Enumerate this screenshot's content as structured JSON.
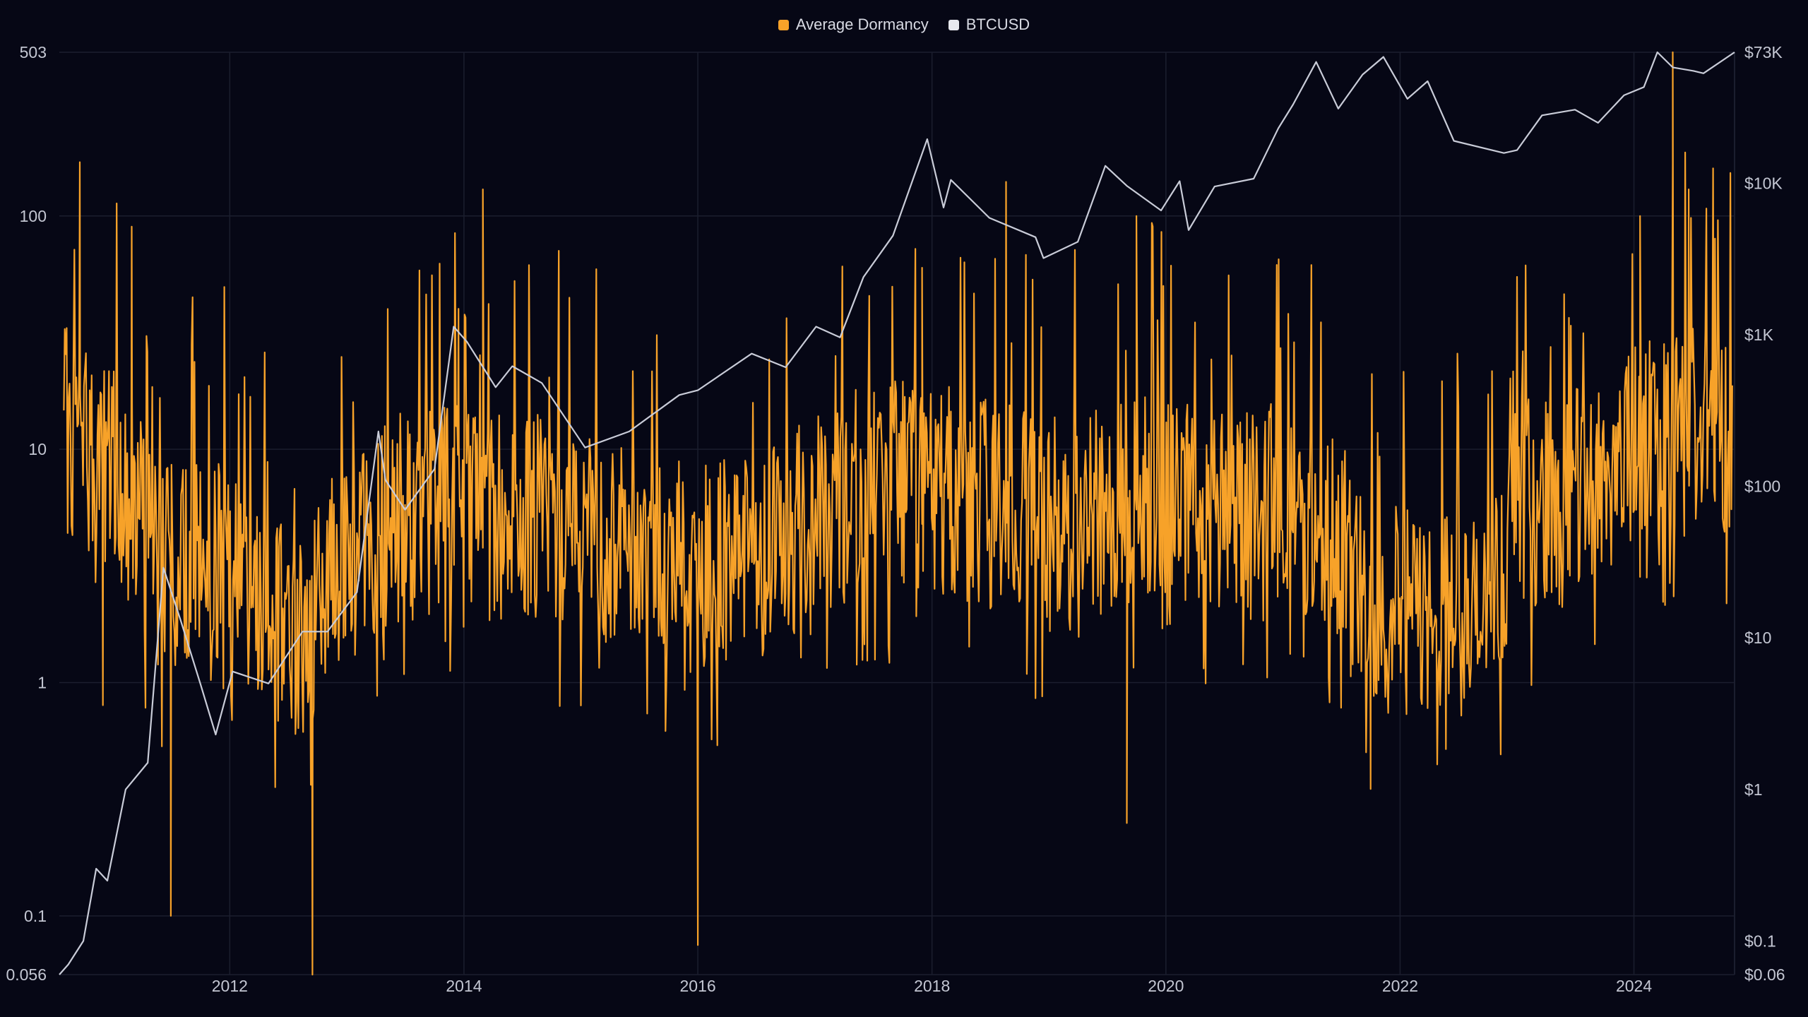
{
  "colors": {
    "background": "#060715",
    "grid": "#1b1e2e",
    "dormancy": "#f7a229",
    "btc": "#c9ccd8"
  },
  "legend": [
    {
      "label": "Average Dormancy",
      "color": "#f7a229"
    },
    {
      "label": "BTCUSD",
      "color": "#e8e9ef"
    }
  ],
  "chart_data": {
    "type": "line",
    "title": "",
    "x_range": [
      "2010-07-18",
      "2024-11-10"
    ],
    "x_ticks": [
      "2012",
      "2014",
      "2016",
      "2018",
      "2020",
      "2022",
      "2024"
    ],
    "y_left": {
      "scale": "log",
      "range": [
        0.056,
        503
      ],
      "ticks": [
        {
          "value": 503,
          "label": "503"
        },
        {
          "value": 100,
          "label": "100"
        },
        {
          "value": 10,
          "label": "10"
        },
        {
          "value": 1,
          "label": "1"
        },
        {
          "value": 0.1,
          "label": "0.1"
        },
        {
          "value": 0.056,
          "label": "0.056"
        }
      ]
    },
    "y_right": {
      "scale": "log",
      "range": [
        0.06,
        73000
      ],
      "ticks": [
        {
          "value": 73000,
          "label": "$73K"
        },
        {
          "value": 10000,
          "label": "$10K"
        },
        {
          "value": 1000,
          "label": "$1K"
        },
        {
          "value": 100,
          "label": "$100"
        },
        {
          "value": 10,
          "label": "$10"
        },
        {
          "value": 1,
          "label": "$1"
        },
        {
          "value": 0.1,
          "label": "$0.1"
        },
        {
          "value": 0.06,
          "label": "$0.06"
        }
      ]
    },
    "grid": true,
    "legend_position": "top-center",
    "series": [
      {
        "name": "Average Dormancy",
        "axis": "left",
        "style": "spiky-daily",
        "baseline": [
          [
            "2010-08-01",
            12
          ],
          [
            "2011-01-01",
            9
          ],
          [
            "2011-06-01",
            3
          ],
          [
            "2012-01-01",
            3.5
          ],
          [
            "2012-08-01",
            1.5
          ],
          [
            "2013-01-01",
            3.5
          ],
          [
            "2013-06-01",
            5
          ],
          [
            "2014-01-01",
            6
          ],
          [
            "2014-06-01",
            5
          ],
          [
            "2015-01-01",
            5
          ],
          [
            "2015-06-01",
            4
          ],
          [
            "2016-01-01",
            3
          ],
          [
            "2016-06-01",
            3.5
          ],
          [
            "2017-01-01",
            5
          ],
          [
            "2017-06-01",
            7
          ],
          [
            "2018-01-01",
            7
          ],
          [
            "2018-06-01",
            6
          ],
          [
            "2019-01-01",
            5
          ],
          [
            "2019-06-01",
            6
          ],
          [
            "2020-01-01",
            6
          ],
          [
            "2020-06-01",
            5.5
          ],
          [
            "2021-01-01",
            6
          ],
          [
            "2021-06-01",
            5
          ],
          [
            "2021-09-01",
            2.5
          ],
          [
            "2022-01-01",
            2
          ],
          [
            "2022-06-01",
            2
          ],
          [
            "2022-10-01",
            1.8
          ],
          [
            "2023-01-01",
            6
          ],
          [
            "2023-06-01",
            6
          ],
          [
            "2024-01-01",
            10
          ],
          [
            "2024-06-01",
            13
          ],
          [
            "2024-11-01",
            12
          ]
        ],
        "peaks": [
          [
            "2010-09-20",
            170
          ],
          [
            "2011-03-01",
            90
          ],
          [
            "2013-12-15",
            40
          ],
          [
            "2014-03-01",
            130
          ],
          [
            "2017-12-01",
            60
          ],
          [
            "2018-08-20",
            140
          ],
          [
            "2019-10-01",
            100
          ],
          [
            "2024-01-20",
            100
          ],
          [
            "2024-05-01",
            503
          ],
          [
            "2024-06-20",
            130
          ],
          [
            "2024-09-10",
            80
          ]
        ],
        "troughs": [
          [
            "2010-12-01",
            0.8
          ],
          [
            "2011-07-01",
            0.1
          ],
          [
            "2012-09-15",
            0.056
          ],
          [
            "2016-01-01",
            0.075
          ],
          [
            "2019-09-01",
            0.25
          ],
          [
            "2021-10-01",
            0.35
          ]
        ]
      },
      {
        "name": "BTCUSD",
        "axis": "right",
        "points": [
          [
            "2010-07-18",
            0.06
          ],
          [
            "2010-08-15",
            0.07
          ],
          [
            "2010-10-01",
            0.1
          ],
          [
            "2010-11-10",
            0.3
          ],
          [
            "2010-12-15",
            0.25
          ],
          [
            "2011-02-10",
            1
          ],
          [
            "2011-04-20",
            1.5
          ],
          [
            "2011-06-08",
            29
          ],
          [
            "2011-08-01",
            13
          ],
          [
            "2011-10-01",
            5
          ],
          [
            "2011-11-18",
            2.3
          ],
          [
            "2012-01-10",
            6
          ],
          [
            "2012-05-01",
            5
          ],
          [
            "2012-08-15",
            11
          ],
          [
            "2012-11-01",
            11
          ],
          [
            "2013-02-01",
            20
          ],
          [
            "2013-04-09",
            230
          ],
          [
            "2013-05-01",
            110
          ],
          [
            "2013-07-01",
            70
          ],
          [
            "2013-10-01",
            130
          ],
          [
            "2013-11-30",
            1130
          ],
          [
            "2014-01-10",
            900
          ],
          [
            "2014-04-10",
            450
          ],
          [
            "2014-06-01",
            620
          ],
          [
            "2014-09-01",
            480
          ],
          [
            "2015-01-14",
            180
          ],
          [
            "2015-06-01",
            230
          ],
          [
            "2015-11-04",
            400
          ],
          [
            "2016-01-01",
            430
          ],
          [
            "2016-06-17",
            750
          ],
          [
            "2016-10-01",
            610
          ],
          [
            "2017-01-04",
            1130
          ],
          [
            "2017-03-20",
            960
          ],
          [
            "2017-06-01",
            2400
          ],
          [
            "2017-09-01",
            4500
          ],
          [
            "2017-12-17",
            19500
          ],
          [
            "2018-02-06",
            6900
          ],
          [
            "2018-03-01",
            10500
          ],
          [
            "2018-06-29",
            5900
          ],
          [
            "2018-11-20",
            4400
          ],
          [
            "2018-12-15",
            3200
          ],
          [
            "2019-04-01",
            4100
          ],
          [
            "2019-06-26",
            13000
          ],
          [
            "2019-09-01",
            9600
          ],
          [
            "2019-12-17",
            6600
          ],
          [
            "2020-02-13",
            10300
          ],
          [
            "2020-03-12",
            4900
          ],
          [
            "2020-06-01",
            9500
          ],
          [
            "2020-10-01",
            10700
          ],
          [
            "2020-12-17",
            23000
          ],
          [
            "2021-02-01",
            33000
          ],
          [
            "2021-04-14",
            63000
          ],
          [
            "2021-06-22",
            31000
          ],
          [
            "2021-09-06",
            52000
          ],
          [
            "2021-11-10",
            68000
          ],
          [
            "2022-01-24",
            36000
          ],
          [
            "2022-03-28",
            47000
          ],
          [
            "2022-06-18",
            19000
          ],
          [
            "2022-11-21",
            15800
          ],
          [
            "2023-01-01",
            16500
          ],
          [
            "2023-03-20",
            28000
          ],
          [
            "2023-07-01",
            30500
          ],
          [
            "2023-09-11",
            25000
          ],
          [
            "2023-12-01",
            38000
          ],
          [
            "2024-02-01",
            43000
          ],
          [
            "2024-03-14",
            73000
          ],
          [
            "2024-05-01",
            58000
          ],
          [
            "2024-07-05",
            55000
          ],
          [
            "2024-08-05",
            53000
          ],
          [
            "2024-11-10",
            73000
          ]
        ]
      }
    ]
  }
}
